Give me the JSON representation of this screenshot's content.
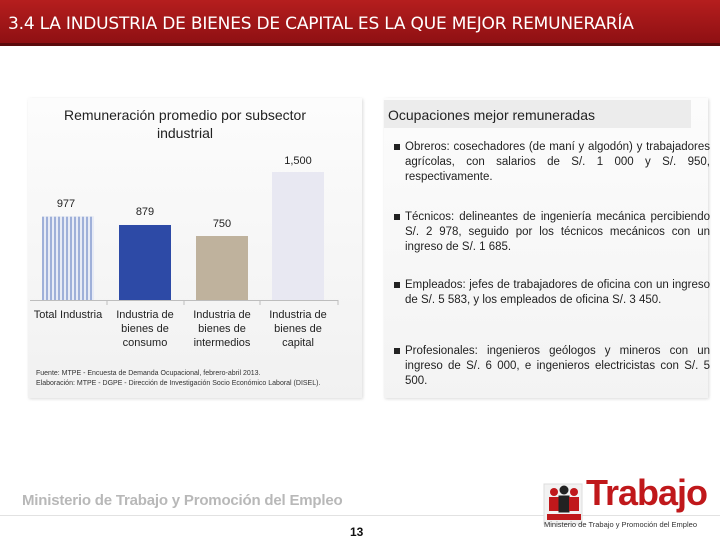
{
  "header": {
    "title": "3.4 LA INDUSTRIA DE BIENES DE CAPITAL ES LA QUE MEJOR REMUNERARÍA"
  },
  "left_panel": {
    "source_line1": "Fuente: MTPE - Encuesta de Demanda Ocupacional, febrero-abril 2013.",
    "source_line2": "Elaboración: MTPE - DGPE - Dirección de Investigación Socio Económico Laboral (DISEL)."
  },
  "chart_data": {
    "type": "bar",
    "title": "Remuneración promedio por subsector industrial",
    "categories": [
      "Total Industria",
      "Industria de bienes de consumo",
      "Industria de bienes de intermedios",
      "Industria de bienes de capital"
    ],
    "category_lines": [
      [
        "Total Industria"
      ],
      [
        "Industria de",
        "bienes de",
        "consumo"
      ],
      [
        "Industria de",
        "bienes de",
        "intermedios"
      ],
      [
        "Industria de",
        "bienes de",
        "capital"
      ]
    ],
    "values": [
      977,
      879,
      750,
      1500
    ],
    "value_labels": [
      "977",
      "879",
      "750",
      "1,500"
    ],
    "colors": [
      "#9fb0d9",
      "#2d4aa6",
      "#bfb29d",
      "#e8e8f2"
    ],
    "ylim": [
      0,
      1500
    ],
    "grid": false,
    "xlabel": "",
    "ylabel": ""
  },
  "right_panel": {
    "title": "Ocupaciones mejor remuneradas",
    "bullets": [
      "Obreros: cosechadores (de maní y algodón) y trabajadores agrícolas, con salarios de S/. 1 000 y S/. 950, respectivamente.",
      "Técnicos: delineantes de ingeniería mecánica percibiendo S/. 2 978, seguido por los técnicos mecánicos con un ingreso de S/. 1 685.",
      "Empleados: jefes de trabajadores de oficina con un ingreso de S/. 5 583, y los empleados de oficina S/. 3 450.",
      "Profesionales: ingenieros geólogos y mineros con un ingreso de S/. 6 000, e ingenieros electricistas con S/. 5 500."
    ]
  },
  "footer": {
    "ministry": "Ministerio de Trabajo y Promoción del Empleo",
    "page_number": "13",
    "logo_text": "Trabajo",
    "logo_subtext": "Ministerio de Trabajo y Promoción del Empleo"
  },
  "colors": {
    "title_bar": "#a3171a",
    "logo_red": "#c0181b"
  }
}
